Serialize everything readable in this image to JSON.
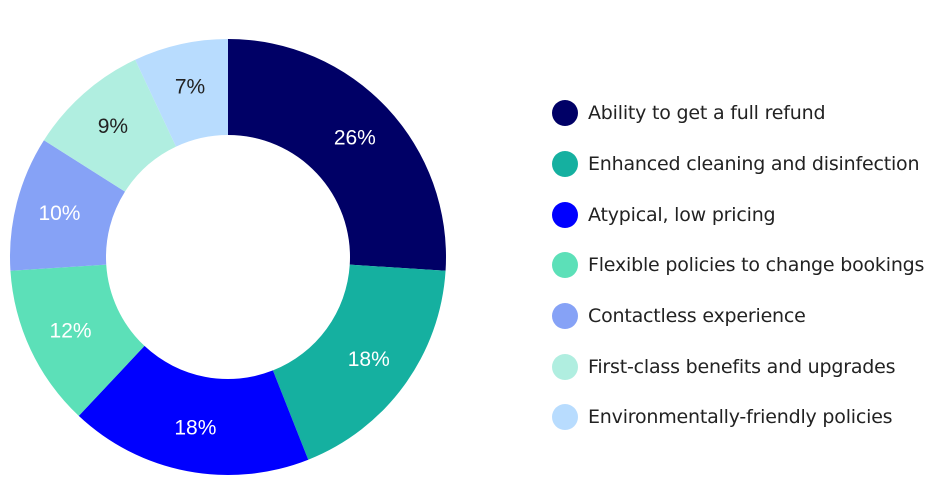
{
  "chart_data": {
    "type": "pie",
    "variant": "donut",
    "title": "",
    "start_angle_deg": 0,
    "direction": "clockwise",
    "legend_position": "right",
    "slices": [
      {
        "label": "Ability to get a full refund",
        "value": 26,
        "display": "26%",
        "color": "#000066",
        "text_color": "#ffffff"
      },
      {
        "label": "Enhanced cleaning and disinfection",
        "value": 18,
        "display": "18%",
        "color": "#15b0a0",
        "text_color": "#ffffff"
      },
      {
        "label": "Atypical, low pricing",
        "value": 18,
        "display": "18%",
        "color": "#0000ff",
        "text_color": "#ffffff"
      },
      {
        "label": "Flexible policies to change bookings",
        "value": 12,
        "display": "12%",
        "color": "#5ce0b8",
        "text_color": "#ffffff"
      },
      {
        "label": "Contactless experience",
        "value": 10,
        "display": "10%",
        "color": "#86a2f6",
        "text_color": "#ffffff"
      },
      {
        "label": "First-class benefits and upgrades",
        "value": 9,
        "display": "9%",
        "color": "#b0eee0",
        "text_color": "#222222"
      },
      {
        "label": "Environmentally-friendly policies",
        "value": 7,
        "display": "7%",
        "color": "#b8dcfe",
        "text_color": "#222222"
      }
    ]
  }
}
